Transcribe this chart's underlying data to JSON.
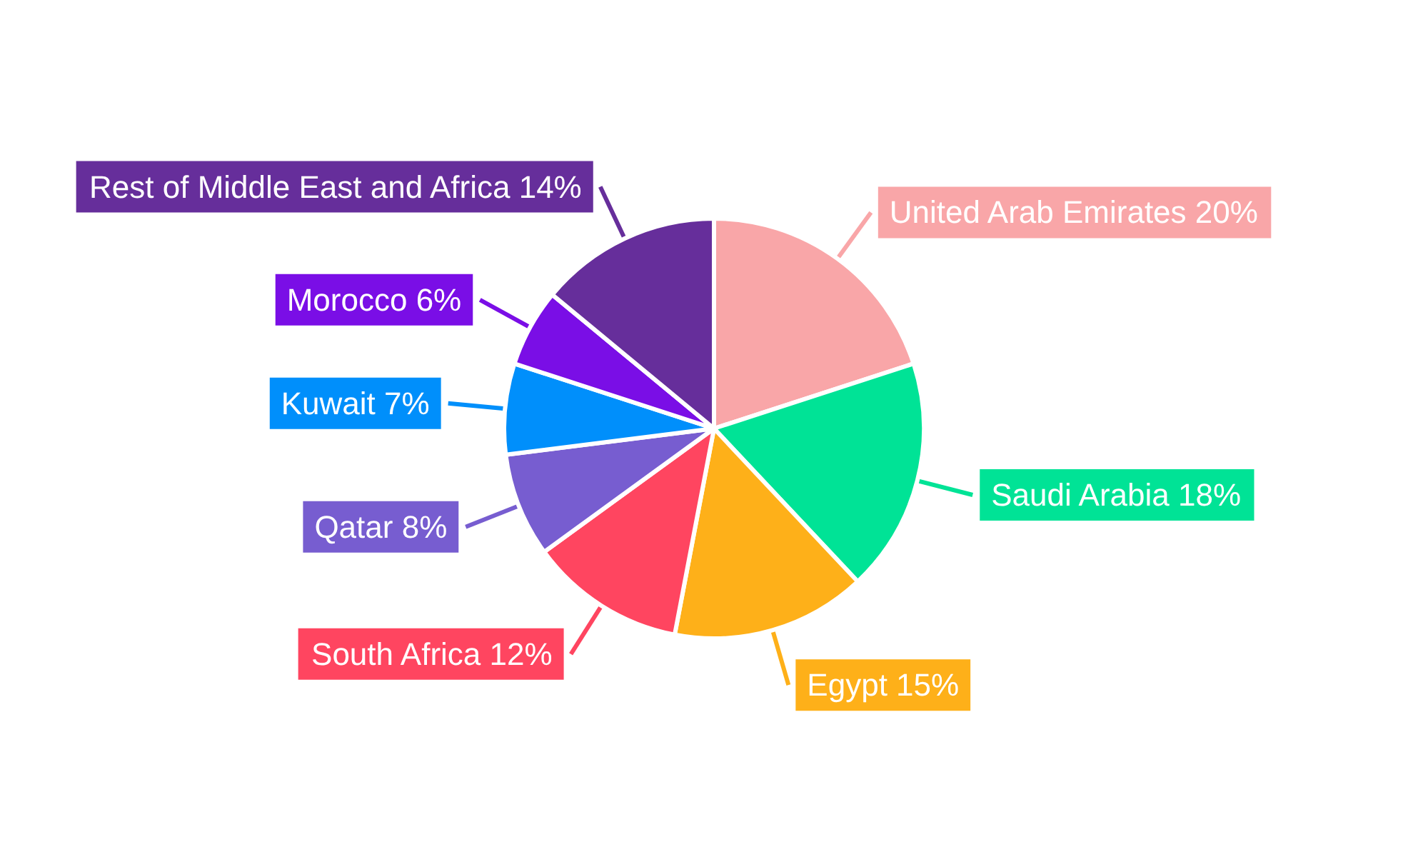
{
  "chart_data": {
    "type": "pie",
    "categories": [
      "United Arab Emirates",
      "Saudi Arabia",
      "Egypt",
      "South Africa",
      "Qatar",
      "Kuwait",
      "Morocco",
      "Rest of Middle East and Africa"
    ],
    "values": [
      20,
      18,
      15,
      12,
      8,
      7,
      6,
      14
    ],
    "value_labels": [
      "20%",
      "18%",
      "15%",
      "12%",
      "8%",
      "7%",
      "6%",
      "14%"
    ],
    "colors": [
      "#f9a6a8",
      "#00e396",
      "#feb019",
      "#ff4560",
      "#775dd0",
      "#008ffb",
      "#7a0ee6",
      "#662e9b"
    ],
    "legend": false
  }
}
